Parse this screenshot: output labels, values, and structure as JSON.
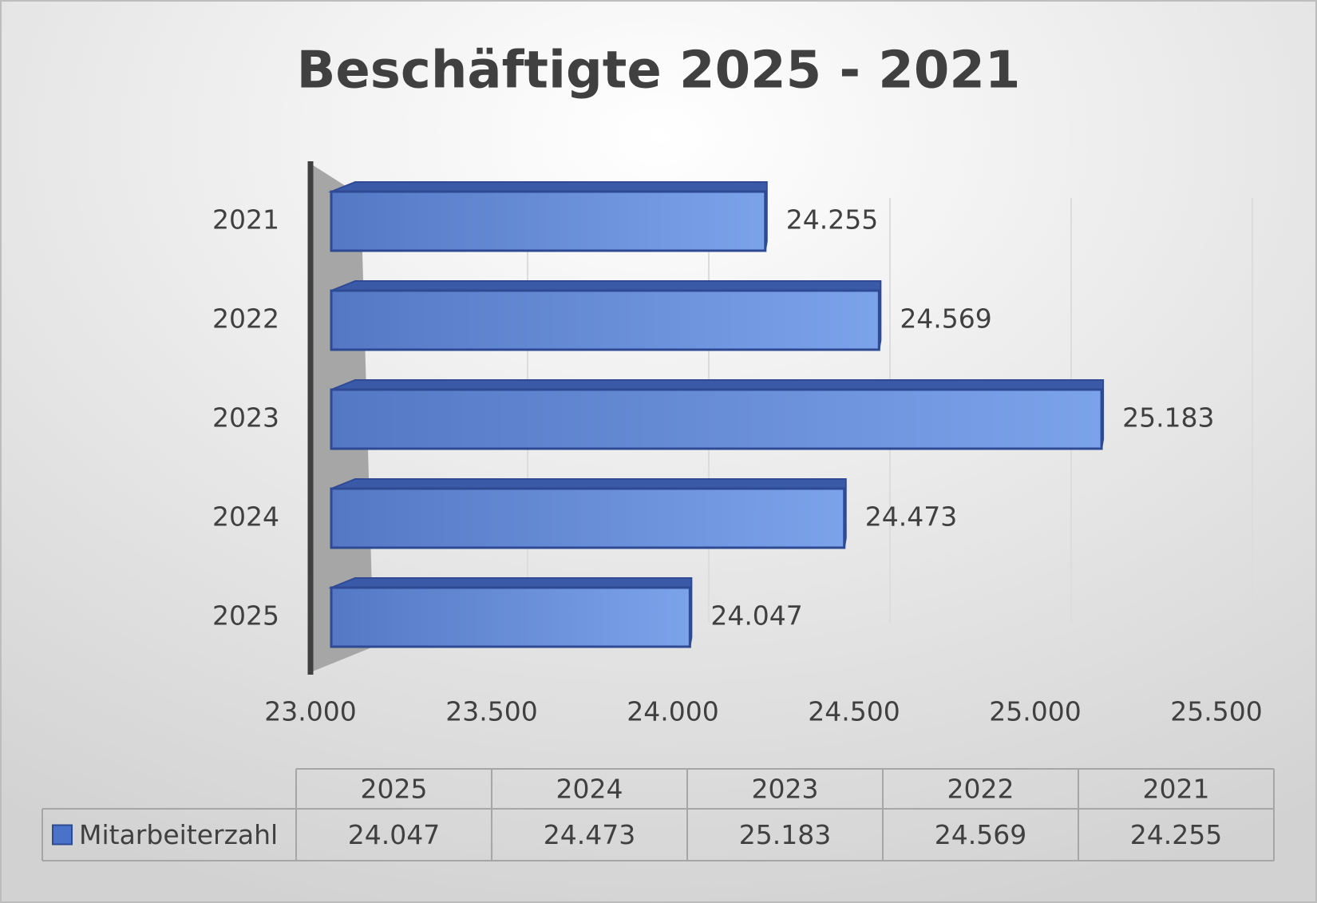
{
  "chart_data": {
    "type": "bar",
    "orientation": "horizontal",
    "title": "Beschäftigte 2025 - 2021",
    "categories": [
      "2025",
      "2024",
      "2023",
      "2022",
      "2021"
    ],
    "series": [
      {
        "name": "Mitarbeiterzahl",
        "color": "#4a72c8",
        "values": [
          24047,
          24473,
          25183,
          24569,
          24255
        ],
        "value_labels": [
          "24.047",
          "24.473",
          "25.183",
          "24.569",
          "24.255"
        ]
      }
    ],
    "xlim": [
      23000,
      25500
    ],
    "xticks": [
      {
        "value": 23000,
        "label": "23.000"
      },
      {
        "value": 23500,
        "label": "23.500"
      },
      {
        "value": 24000,
        "label": "24.000"
      },
      {
        "value": 24500,
        "label": "24.500"
      },
      {
        "value": 25000,
        "label": "25.000"
      },
      {
        "value": 25500,
        "label": "25.500"
      }
    ],
    "grid": true,
    "data_table": true
  }
}
